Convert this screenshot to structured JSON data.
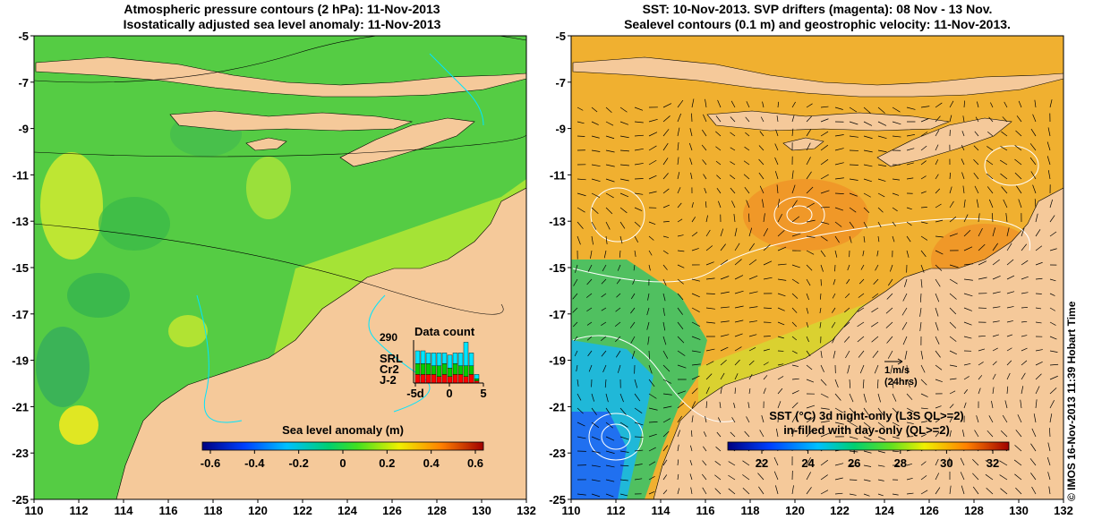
{
  "left_panel": {
    "title_line1": "Atmospheric pressure contours (2 hPa): 11-Nov-2013",
    "title_line2": "Isostatically adjusted sea level anomaly: 11-Nov-2013",
    "x_ticks": [
      "110",
      "112",
      "114",
      "116",
      "118",
      "120",
      "122",
      "124",
      "126",
      "128",
      "130",
      "132"
    ],
    "y_ticks": [
      "-5",
      "-7",
      "-9",
      "-11",
      "-13",
      "-15",
      "-17",
      "-19",
      "-21",
      "-23",
      "-25"
    ],
    "colorbar": {
      "title": "Sea level anomaly (m)",
      "ticks": [
        "-0.6",
        "-0.4",
        "-0.2",
        "0",
        "0.2",
        "0.4",
        "0.6"
      ]
    },
    "inset": {
      "title": "Data count",
      "max_label": "290",
      "legend": [
        {
          "label": "SRL",
          "color": "#00e5ff"
        },
        {
          "label": "Cr2",
          "color": "#00cc00"
        },
        {
          "label": "J-2",
          "color": "#ff0000"
        }
      ],
      "x_ticks": [
        "-5d",
        "0",
        "5"
      ],
      "bars": [
        {
          "srl": 0.3,
          "cr2": 0.25,
          "j2": 0.2
        },
        {
          "srl": 0.3,
          "cr2": 0.25,
          "j2": 0.2
        },
        {
          "srl": 0.25,
          "cr2": 0.25,
          "j2": 0.2
        },
        {
          "srl": 0.3,
          "cr2": 0.2,
          "j2": 0.2
        },
        {
          "srl": 0.3,
          "cr2": 0.25,
          "j2": 0.15
        },
        {
          "srl": 0.25,
          "cr2": 0.25,
          "j2": 0.2
        },
        {
          "srl": 0.3,
          "cr2": 0.2,
          "j2": 0.15
        },
        {
          "srl": 0.25,
          "cr2": 0.25,
          "j2": 0.2
        },
        {
          "srl": 0.3,
          "cr2": 0.2,
          "j2": 0.2
        },
        {
          "srl": 0.55,
          "cr2": 0.25,
          "j2": 0.15
        },
        {
          "srl": 0.3,
          "cr2": 0.2,
          "j2": 0.2
        },
        {
          "srl": 0.1,
          "cr2": 0.05,
          "j2": 0.05
        }
      ]
    }
  },
  "right_panel": {
    "title_line1": "SST: 10-Nov-2013. SVP drifters (magenta): 08 Nov - 13 Nov.",
    "title_line2": "Sealevel contours (0.1 m) and geostrophic velocity: 11-Nov-2013.",
    "x_ticks": [
      "110",
      "112",
      "114",
      "116",
      "118",
      "120",
      "122",
      "124",
      "126",
      "128",
      "130",
      "132"
    ],
    "y_ticks": [
      "-5",
      "-7",
      "-9",
      "-11",
      "-13",
      "-15",
      "-17",
      "-19",
      "-21",
      "-23",
      "-25"
    ],
    "velocity_scale": {
      "line1": "1 m/s",
      "line2": "(24hrs)"
    },
    "colorbar": {
      "title_line1": "SST (°C)  3d night-only (L3S QL>=2)",
      "title_line2": "in-filled with day-only (QL>=2)",
      "ticks": [
        "22",
        "24",
        "26",
        "28",
        "30",
        "32"
      ]
    }
  },
  "credit": "© IMOS 16-Nov-2013 11:39 Hobart Time",
  "colors": {
    "land": "#f5c99a",
    "ocean_left": "#55cc44",
    "ocean_right": "#f0b030"
  }
}
